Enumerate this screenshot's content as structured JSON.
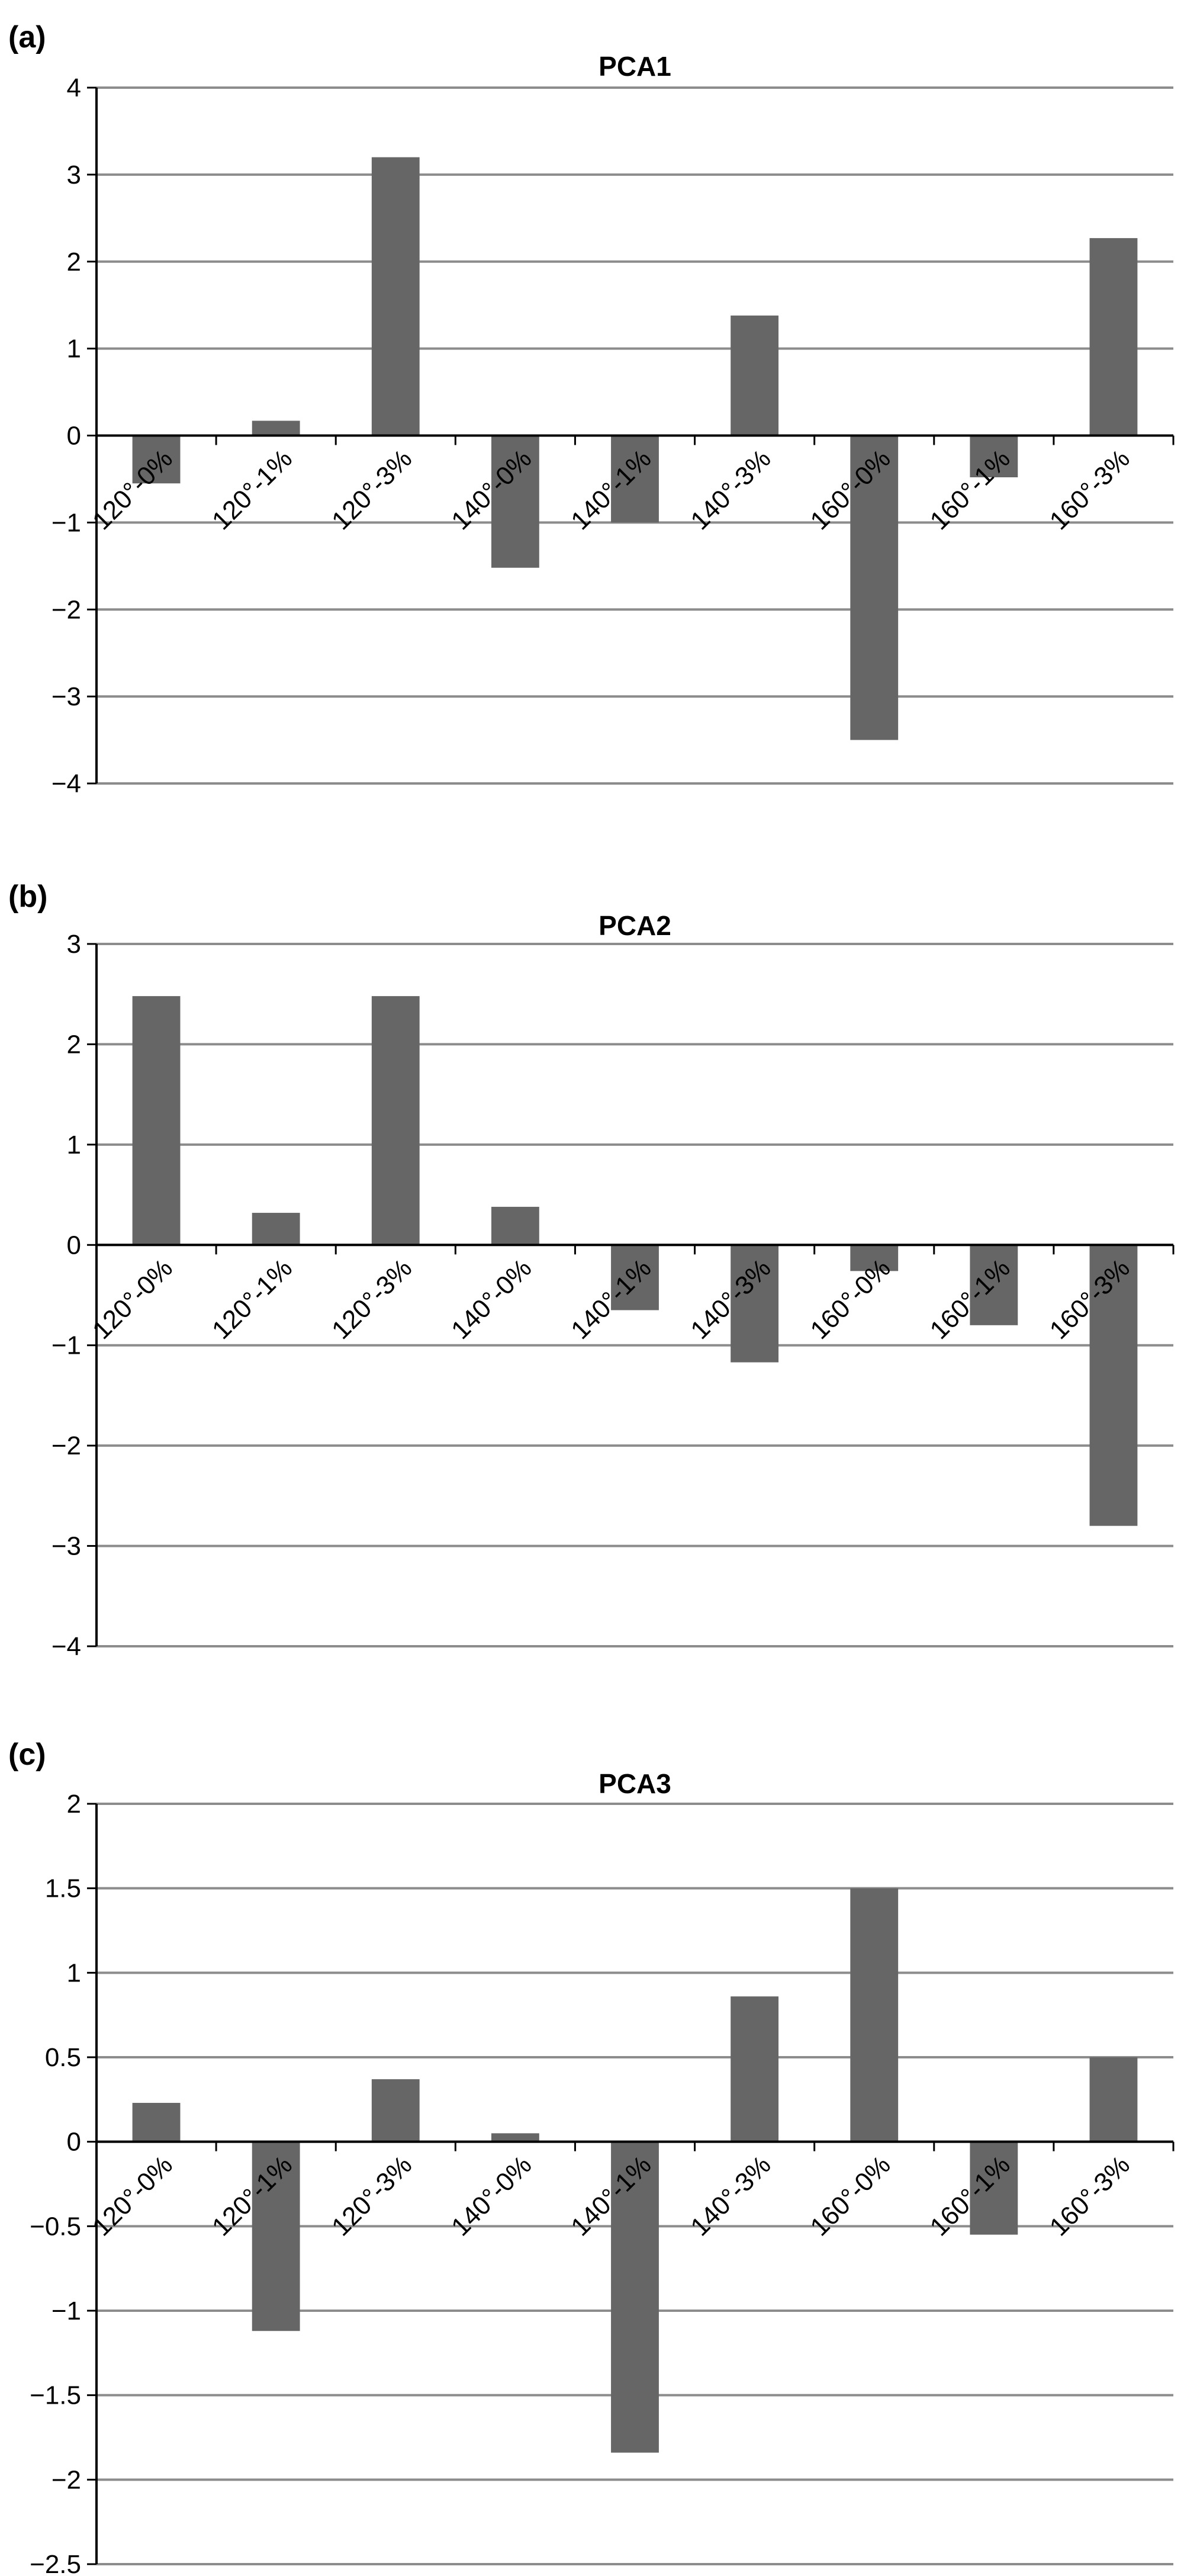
{
  "figure": {
    "bar_color": "#666666",
    "grid_color": "#8c8c8c",
    "axis_color": "#000000"
  },
  "chart_data": [
    {
      "type": "bar",
      "panel": "(a)",
      "title": "PCA1",
      "categories": [
        "120°-0%",
        "120°-1%",
        "120°-3%",
        "140°-0%",
        "140°-1%",
        "140°-3%",
        "160°-0%",
        "160°-1%",
        "160°-3%"
      ],
      "values": [
        -0.55,
        0.17,
        3.2,
        -1.52,
        -1.0,
        1.38,
        -3.5,
        -0.48,
        2.27
      ],
      "yticks": [
        "4",
        "3",
        "2",
        "1",
        "0",
        "−1",
        "−2",
        "−3",
        "−4"
      ],
      "ylim": [
        -4,
        4
      ],
      "grid": true
    },
    {
      "type": "bar",
      "panel": "(b)",
      "title": "PCA2",
      "categories": [
        "120°-0%",
        "120°-1%",
        "120°-3%",
        "140°-0%",
        "140°-1%",
        "140°-3%",
        "160°-0%",
        "160°-1%",
        "160°-3%"
      ],
      "values": [
        2.48,
        0.32,
        2.48,
        0.38,
        -0.65,
        -1.17,
        -0.26,
        -0.8,
        -2.8
      ],
      "yticks": [
        "3",
        "2",
        "1",
        "0",
        "−1",
        "−2",
        "−3",
        "−4"
      ],
      "ylim": [
        -4,
        3
      ],
      "grid": true
    },
    {
      "type": "bar",
      "panel": "(c)",
      "title": "PCA3",
      "categories": [
        "120°-0%",
        "120°-1%",
        "120°-3%",
        "140°-0%",
        "140°-1%",
        "140°-3%",
        "160°-0%",
        "160°-1%",
        "160°-3%"
      ],
      "values": [
        0.23,
        -1.12,
        0.37,
        0.05,
        -1.84,
        0.86,
        1.5,
        -0.55,
        0.5
      ],
      "yticks": [
        "2",
        "1.5",
        "1",
        "0.5",
        "0",
        "−0.5",
        "−1",
        "−1.5",
        "−2",
        "−2.5"
      ],
      "ylim": [
        -2.5,
        2
      ],
      "grid": true
    }
  ]
}
